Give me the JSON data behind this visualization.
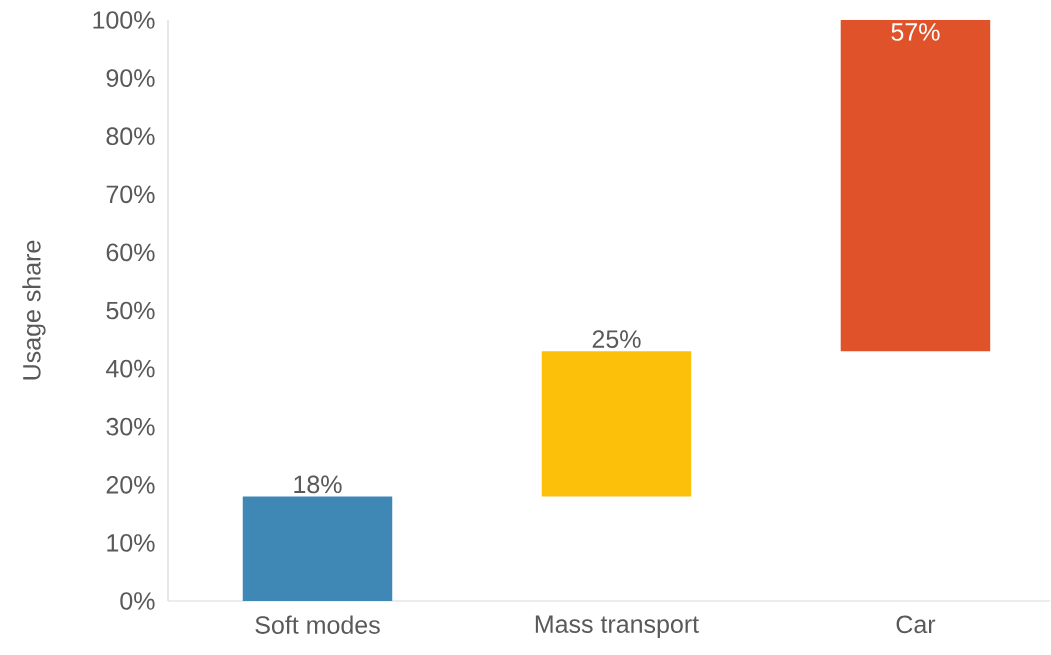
{
  "chart_data": {
    "type": "bar",
    "ylabel": "Usage share",
    "categories": [
      "Soft modes",
      "Mass transport",
      "Car"
    ],
    "values": [
      18,
      25,
      57
    ],
    "base": [
      0,
      18,
      43
    ],
    "colors": [
      "#3f88b5",
      "#fdc00a",
      "#e0532a"
    ],
    "value_labels": [
      "18%",
      "25%",
      "57%"
    ],
    "ylim": [
      0,
      100
    ],
    "yticks": [
      {
        "value": 0,
        "label": "0%"
      },
      {
        "value": 10,
        "label": "10%"
      },
      {
        "value": 20,
        "label": "20%"
      },
      {
        "value": 30,
        "label": "30%"
      },
      {
        "value": 40,
        "label": "40%"
      },
      {
        "value": 50,
        "label": "50%"
      },
      {
        "value": 60,
        "label": "60%"
      },
      {
        "value": 70,
        "label": "70%"
      },
      {
        "value": 80,
        "label": "80%"
      },
      {
        "value": 90,
        "label": "90%"
      },
      {
        "value": 100,
        "label": "100%"
      }
    ],
    "grid": false
  }
}
